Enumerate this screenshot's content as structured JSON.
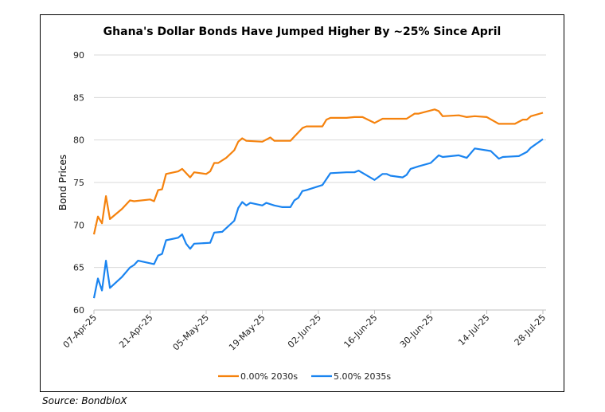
{
  "chart_data": {
    "type": "line",
    "title": "Ghana's Dollar Bonds Have Jumped Higher By ~25% Since April",
    "xlabel": "",
    "ylabel": "Bond Prices",
    "ylim": [
      60,
      90
    ],
    "yticks": [
      60,
      65,
      70,
      75,
      80,
      85,
      90
    ],
    "x_unit": "days since 07-Apr-25",
    "xlim": [
      0,
      112
    ],
    "xtick_labels": [
      "07-Apr-25",
      "21-Apr-25",
      "05-May-25",
      "19-May-25",
      "02-Jun-25",
      "16-Jun-25",
      "30-Jun-25",
      "14-Jul-25",
      "28-Jul-25"
    ],
    "xtick_days": [
      0,
      14,
      28,
      42,
      56,
      70,
      84,
      98,
      112
    ],
    "grid": true,
    "legend_position": "bottom",
    "series": [
      {
        "name": "0.00% 2030s",
        "color": "#f5820d",
        "x": [
          0,
          1,
          2,
          3,
          4,
          7,
          9,
          10,
          14,
          15,
          16,
          17,
          18,
          21,
          22,
          24,
          25,
          28,
          29,
          30,
          31,
          33,
          35,
          36,
          37,
          38,
          42,
          44,
          45,
          49,
          50,
          52,
          53,
          57,
          58,
          59,
          63,
          65,
          67,
          70,
          72,
          78,
          79,
          80,
          81,
          85,
          86,
          87,
          91,
          93,
          95,
          98,
          101,
          105,
          107,
          108,
          109,
          112
        ],
        "y": [
          68.9,
          71.0,
          70.2,
          73.4,
          70.7,
          71.9,
          72.9,
          72.8,
          73.0,
          72.8,
          74.1,
          74.2,
          76.0,
          76.3,
          76.6,
          75.6,
          76.2,
          76.0,
          76.3,
          77.3,
          77.3,
          77.9,
          78.8,
          79.8,
          80.2,
          79.9,
          79.8,
          80.3,
          79.9,
          79.9,
          80.4,
          81.4,
          81.6,
          81.6,
          82.4,
          82.6,
          82.6,
          82.7,
          82.7,
          82.0,
          82.5,
          82.5,
          82.8,
          83.1,
          83.1,
          83.6,
          83.4,
          82.8,
          82.9,
          82.7,
          82.8,
          82.7,
          81.9,
          81.9,
          82.4,
          82.4,
          82.8,
          83.2
        ]
      },
      {
        "name": "5.00% 2035s",
        "color": "#1a84f0",
        "x": [
          0,
          1,
          2,
          3,
          4,
          7,
          9,
          10,
          11,
          15,
          16,
          17,
          18,
          21,
          22,
          23,
          24,
          25,
          29,
          30,
          32,
          35,
          36,
          37,
          38,
          39,
          42,
          43,
          45,
          47,
          49,
          50,
          51,
          52,
          53,
          57,
          59,
          63,
          65,
          66,
          70,
          72,
          73,
          74,
          77,
          78,
          79,
          81,
          84,
          86,
          87,
          91,
          93,
          95,
          99,
          101,
          102,
          106,
          108,
          109,
          112
        ],
        "y": [
          61.4,
          63.7,
          62.3,
          65.8,
          62.6,
          63.9,
          65.0,
          65.3,
          65.8,
          65.4,
          66.4,
          66.6,
          68.2,
          68.5,
          68.9,
          67.8,
          67.2,
          67.8,
          67.9,
          69.1,
          69.2,
          70.5,
          72.0,
          72.7,
          72.3,
          72.6,
          72.3,
          72.6,
          72.3,
          72.1,
          72.1,
          72.9,
          73.2,
          74.0,
          74.1,
          74.7,
          76.1,
          76.2,
          76.2,
          76.4,
          75.3,
          76.0,
          76.0,
          75.8,
          75.6,
          75.9,
          76.6,
          76.9,
          77.3,
          78.2,
          78.0,
          78.2,
          77.9,
          79.0,
          78.7,
          77.8,
          78.0,
          78.1,
          78.6,
          79.1,
          80.1
        ]
      }
    ]
  },
  "source": "Source: BondbloX"
}
